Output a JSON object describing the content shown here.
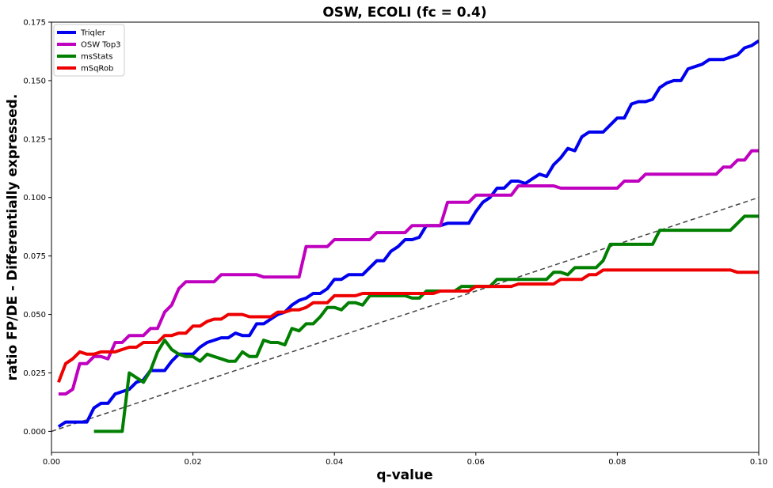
{
  "chart_data": {
    "type": "line",
    "title": "OSW, ECOLI (fc = 0.4)",
    "xlabel": "q-value",
    "ylabel": "ratio FP/DE - Differentially expressed.",
    "xlim": [
      0,
      0.1
    ],
    "ylim": [
      -0.009,
      0.175
    ],
    "xticks": [
      "0.00",
      "0.02",
      "0.04",
      "0.06",
      "0.08",
      "0.10"
    ],
    "xtick_values": [
      0,
      0.02,
      0.04,
      0.06,
      0.08,
      0.1
    ],
    "yticks": [
      "0.000",
      "0.025",
      "0.050",
      "0.075",
      "0.100",
      "0.125",
      "0.150",
      "0.175"
    ],
    "ytick_values": [
      0,
      0.025,
      0.05,
      0.075,
      0.1,
      0.125,
      0.15,
      0.175
    ],
    "grid": false,
    "legend_position": "top-left",
    "reference_line": {
      "style": "dashed",
      "color": "#444444",
      "x": [
        0,
        0.1
      ],
      "y": [
        0,
        0.1
      ]
    },
    "series": [
      {
        "name": "Triqler",
        "color": "#0000ee",
        "x": [
          0.001,
          0.002,
          0.003,
          0.004,
          0.005,
          0.006,
          0.007,
          0.008,
          0.009,
          0.01,
          0.011,
          0.012,
          0.013,
          0.014,
          0.015,
          0.016,
          0.017,
          0.018,
          0.019,
          0.02,
          0.021,
          0.022,
          0.023,
          0.024,
          0.025,
          0.026,
          0.027,
          0.028,
          0.029,
          0.03,
          0.031,
          0.032,
          0.033,
          0.034,
          0.035,
          0.036,
          0.037,
          0.038,
          0.039,
          0.04,
          0.041,
          0.042,
          0.043,
          0.044,
          0.045,
          0.046,
          0.047,
          0.048,
          0.049,
          0.05,
          0.051,
          0.052,
          0.053,
          0.054,
          0.055,
          0.056,
          0.057,
          0.058,
          0.059,
          0.06,
          0.061,
          0.062,
          0.063,
          0.064,
          0.065,
          0.066,
          0.067,
          0.068,
          0.069,
          0.07,
          0.071,
          0.072,
          0.073,
          0.074,
          0.075,
          0.076,
          0.077,
          0.078,
          0.079,
          0.08,
          0.081,
          0.082,
          0.083,
          0.084,
          0.085,
          0.086,
          0.087,
          0.088,
          0.089,
          0.09,
          0.091,
          0.092,
          0.093,
          0.094,
          0.095,
          0.096,
          0.097,
          0.098,
          0.099,
          0.1
        ],
        "y": [
          0.002,
          0.004,
          0.004,
          0.004,
          0.004,
          0.01,
          0.012,
          0.012,
          0.016,
          0.017,
          0.018,
          0.021,
          0.022,
          0.026,
          0.026,
          0.026,
          0.03,
          0.033,
          0.033,
          0.033,
          0.036,
          0.038,
          0.039,
          0.04,
          0.04,
          0.042,
          0.041,
          0.041,
          0.046,
          0.046,
          0.048,
          0.05,
          0.051,
          0.054,
          0.056,
          0.057,
          0.059,
          0.059,
          0.061,
          0.065,
          0.065,
          0.067,
          0.067,
          0.067,
          0.07,
          0.073,
          0.073,
          0.077,
          0.079,
          0.082,
          0.082,
          0.083,
          0.088,
          0.088,
          0.088,
          0.089,
          0.089,
          0.089,
          0.089,
          0.094,
          0.098,
          0.1,
          0.104,
          0.104,
          0.107,
          0.107,
          0.106,
          0.108,
          0.11,
          0.109,
          0.114,
          0.117,
          0.121,
          0.12,
          0.126,
          0.128,
          0.128,
          0.128,
          0.131,
          0.134,
          0.134,
          0.14,
          0.141,
          0.141,
          0.142,
          0.147,
          0.149,
          0.15,
          0.15,
          0.155,
          0.156,
          0.157,
          0.159,
          0.159,
          0.159,
          0.16,
          0.161,
          0.164,
          0.165,
          0.167
        ]
      },
      {
        "name": "OSW Top3",
        "color": "#bf00bf",
        "x": [
          0.001,
          0.002,
          0.003,
          0.004,
          0.005,
          0.006,
          0.007,
          0.008,
          0.009,
          0.01,
          0.011,
          0.012,
          0.013,
          0.014,
          0.015,
          0.016,
          0.017,
          0.018,
          0.019,
          0.02,
          0.021,
          0.022,
          0.023,
          0.024,
          0.025,
          0.026,
          0.027,
          0.028,
          0.029,
          0.03,
          0.031,
          0.032,
          0.033,
          0.034,
          0.035,
          0.036,
          0.037,
          0.038,
          0.039,
          0.04,
          0.041,
          0.042,
          0.043,
          0.044,
          0.045,
          0.046,
          0.047,
          0.048,
          0.049,
          0.05,
          0.051,
          0.052,
          0.053,
          0.054,
          0.055,
          0.056,
          0.057,
          0.058,
          0.059,
          0.06,
          0.061,
          0.062,
          0.063,
          0.064,
          0.065,
          0.066,
          0.067,
          0.068,
          0.069,
          0.07,
          0.071,
          0.072,
          0.073,
          0.074,
          0.075,
          0.076,
          0.077,
          0.078,
          0.079,
          0.08,
          0.081,
          0.082,
          0.083,
          0.084,
          0.085,
          0.086,
          0.087,
          0.088,
          0.089,
          0.09,
          0.091,
          0.092,
          0.093,
          0.094,
          0.095,
          0.096,
          0.097,
          0.098,
          0.099,
          0.1
        ],
        "y": [
          0.016,
          0.016,
          0.018,
          0.029,
          0.029,
          0.032,
          0.032,
          0.031,
          0.038,
          0.038,
          0.041,
          0.041,
          0.041,
          0.044,
          0.044,
          0.051,
          0.054,
          0.061,
          0.064,
          0.064,
          0.064,
          0.064,
          0.064,
          0.067,
          0.067,
          0.067,
          0.067,
          0.067,
          0.067,
          0.066,
          0.066,
          0.066,
          0.066,
          0.066,
          0.066,
          0.079,
          0.079,
          0.079,
          0.079,
          0.082,
          0.082,
          0.082,
          0.082,
          0.082,
          0.082,
          0.085,
          0.085,
          0.085,
          0.085,
          0.085,
          0.088,
          0.088,
          0.088,
          0.088,
          0.088,
          0.098,
          0.098,
          0.098,
          0.098,
          0.101,
          0.101,
          0.101,
          0.101,
          0.101,
          0.101,
          0.105,
          0.105,
          0.105,
          0.105,
          0.105,
          0.105,
          0.104,
          0.104,
          0.104,
          0.104,
          0.104,
          0.104,
          0.104,
          0.104,
          0.104,
          0.107,
          0.107,
          0.107,
          0.11,
          0.11,
          0.11,
          0.11,
          0.11,
          0.11,
          0.11,
          0.11,
          0.11,
          0.11,
          0.11,
          0.113,
          0.113,
          0.116,
          0.116,
          0.12,
          0.12
        ]
      },
      {
        "name": "msStats",
        "color": "#007f00",
        "x": [
          0.006,
          0.007,
          0.008,
          0.009,
          0.01,
          0.011,
          0.012,
          0.013,
          0.014,
          0.015,
          0.016,
          0.017,
          0.018,
          0.019,
          0.02,
          0.021,
          0.022,
          0.023,
          0.024,
          0.025,
          0.026,
          0.027,
          0.028,
          0.029,
          0.03,
          0.031,
          0.032,
          0.033,
          0.034,
          0.035,
          0.036,
          0.037,
          0.038,
          0.039,
          0.04,
          0.041,
          0.042,
          0.043,
          0.044,
          0.045,
          0.046,
          0.047,
          0.048,
          0.049,
          0.05,
          0.051,
          0.052,
          0.053,
          0.054,
          0.055,
          0.056,
          0.057,
          0.058,
          0.059,
          0.06,
          0.061,
          0.062,
          0.063,
          0.064,
          0.065,
          0.066,
          0.067,
          0.068,
          0.069,
          0.07,
          0.071,
          0.072,
          0.073,
          0.074,
          0.075,
          0.076,
          0.077,
          0.078,
          0.079,
          0.08,
          0.081,
          0.082,
          0.083,
          0.084,
          0.085,
          0.086,
          0.087,
          0.088,
          0.089,
          0.09,
          0.091,
          0.092,
          0.093,
          0.094,
          0.095,
          0.096,
          0.097,
          0.098,
          0.099,
          0.1
        ],
        "y": [
          0.0,
          0.0,
          0.0,
          0.0,
          0.0,
          0.025,
          0.023,
          0.021,
          0.026,
          0.034,
          0.039,
          0.035,
          0.033,
          0.032,
          0.032,
          0.03,
          0.033,
          0.032,
          0.031,
          0.03,
          0.03,
          0.034,
          0.032,
          0.032,
          0.039,
          0.038,
          0.038,
          0.037,
          0.044,
          0.043,
          0.046,
          0.046,
          0.049,
          0.053,
          0.053,
          0.052,
          0.055,
          0.055,
          0.054,
          0.058,
          0.058,
          0.058,
          0.058,
          0.058,
          0.058,
          0.057,
          0.057,
          0.06,
          0.06,
          0.06,
          0.06,
          0.06,
          0.062,
          0.062,
          0.062,
          0.062,
          0.062,
          0.065,
          0.065,
          0.065,
          0.065,
          0.065,
          0.065,
          0.065,
          0.065,
          0.068,
          0.068,
          0.067,
          0.07,
          0.07,
          0.07,
          0.07,
          0.073,
          0.08,
          0.08,
          0.08,
          0.08,
          0.08,
          0.08,
          0.08,
          0.086,
          0.086,
          0.086,
          0.086,
          0.086,
          0.086,
          0.086,
          0.086,
          0.086,
          0.086,
          0.086,
          0.089,
          0.092,
          0.092,
          0.092
        ]
      },
      {
        "name": "mSqRob",
        "color": "#ee0000",
        "x": [
          0.001,
          0.002,
          0.003,
          0.004,
          0.005,
          0.006,
          0.007,
          0.008,
          0.009,
          0.01,
          0.011,
          0.012,
          0.013,
          0.014,
          0.015,
          0.016,
          0.017,
          0.018,
          0.019,
          0.02,
          0.021,
          0.022,
          0.023,
          0.024,
          0.025,
          0.026,
          0.027,
          0.028,
          0.029,
          0.03,
          0.031,
          0.032,
          0.033,
          0.034,
          0.035,
          0.036,
          0.037,
          0.038,
          0.039,
          0.04,
          0.041,
          0.042,
          0.043,
          0.044,
          0.045,
          0.046,
          0.047,
          0.048,
          0.049,
          0.05,
          0.051,
          0.052,
          0.053,
          0.054,
          0.055,
          0.056,
          0.057,
          0.058,
          0.059,
          0.06,
          0.061,
          0.062,
          0.063,
          0.064,
          0.065,
          0.066,
          0.067,
          0.068,
          0.069,
          0.07,
          0.071,
          0.072,
          0.073,
          0.074,
          0.075,
          0.076,
          0.077,
          0.078,
          0.079,
          0.08,
          0.081,
          0.082,
          0.083,
          0.084,
          0.085,
          0.086,
          0.087,
          0.088,
          0.089,
          0.09,
          0.091,
          0.092,
          0.093,
          0.094,
          0.095,
          0.096,
          0.097,
          0.098,
          0.099,
          0.1
        ],
        "y": [
          0.021,
          0.029,
          0.031,
          0.034,
          0.033,
          0.033,
          0.034,
          0.034,
          0.034,
          0.035,
          0.036,
          0.036,
          0.038,
          0.038,
          0.038,
          0.041,
          0.041,
          0.042,
          0.042,
          0.045,
          0.045,
          0.047,
          0.048,
          0.048,
          0.05,
          0.05,
          0.05,
          0.049,
          0.049,
          0.049,
          0.049,
          0.051,
          0.051,
          0.052,
          0.052,
          0.053,
          0.055,
          0.055,
          0.055,
          0.058,
          0.058,
          0.058,
          0.058,
          0.059,
          0.059,
          0.059,
          0.059,
          0.059,
          0.059,
          0.059,
          0.059,
          0.059,
          0.059,
          0.059,
          0.06,
          0.06,
          0.06,
          0.06,
          0.06,
          0.062,
          0.062,
          0.062,
          0.062,
          0.062,
          0.062,
          0.063,
          0.063,
          0.063,
          0.063,
          0.063,
          0.063,
          0.065,
          0.065,
          0.065,
          0.065,
          0.067,
          0.067,
          0.069,
          0.069,
          0.069,
          0.069,
          0.069,
          0.069,
          0.069,
          0.069,
          0.069,
          0.069,
          0.069,
          0.069,
          0.069,
          0.069,
          0.069,
          0.069,
          0.069,
          0.069,
          0.069,
          0.068,
          0.068,
          0.068,
          0.068
        ]
      }
    ]
  }
}
